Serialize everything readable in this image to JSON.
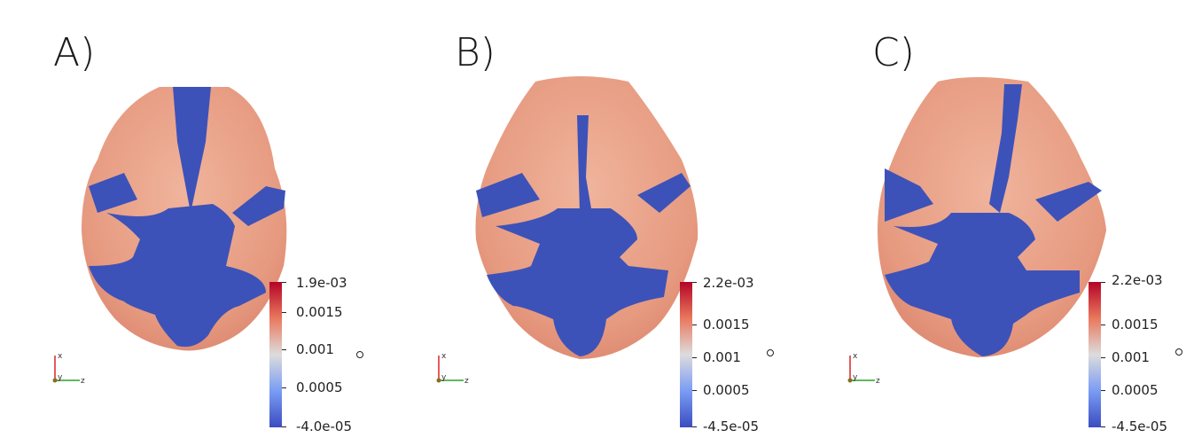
{
  "panels": [
    {
      "label": "A)",
      "colorbar": {
        "max_label": "1.9e-03",
        "ticks": [
          "0.0015",
          "0.001",
          "0.0005"
        ],
        "min_label": "-4.0e-05"
      },
      "axes": {
        "x": "x",
        "y": "y",
        "z": "z"
      }
    },
    {
      "label": "B)",
      "colorbar": {
        "max_label": "2.2e-03",
        "ticks": [
          "0.0015",
          "0.001",
          "0.0005"
        ],
        "min_label": "-4.5e-05"
      },
      "axes": {
        "x": "x",
        "y": "y",
        "z": "z"
      }
    },
    {
      "label": "C)",
      "colorbar": {
        "max_label": "2.2e-03",
        "ticks": [
          "0.0015",
          "0.001",
          "0.0005"
        ],
        "min_label": "-4.5e-05"
      },
      "axes": {
        "x": "x",
        "y": "y",
        "z": "z"
      }
    }
  ],
  "colors": {
    "high": "#b2182b",
    "mid": "#dddddd",
    "low": "#3b4cc0",
    "surface_red": "#e8957c",
    "surface_blue": "#3d52b8"
  }
}
